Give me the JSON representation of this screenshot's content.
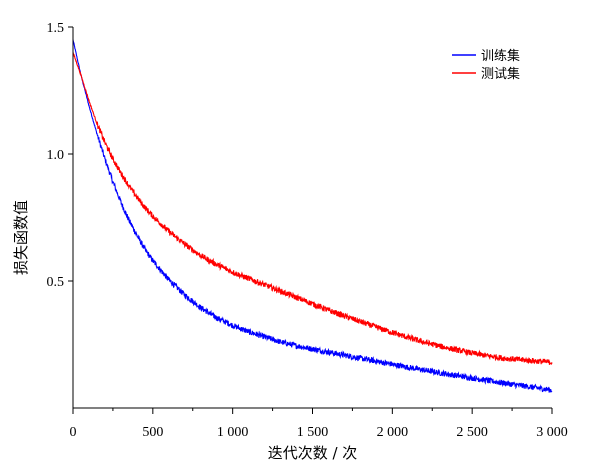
{
  "chart_data": {
    "type": "line",
    "title": "",
    "xlabel": "迭代次数 / 次",
    "ylabel": "损失函数值",
    "xlim": [
      0,
      3000
    ],
    "ylim": [
      0,
      1.5
    ],
    "x_ticks": [
      {
        "value": 0,
        "label": "0"
      },
      {
        "value": 500,
        "label": "500"
      },
      {
        "value": 1000,
        "label": "1 000"
      },
      {
        "value": 1500,
        "label": "1 500"
      },
      {
        "value": 2000,
        "label": "2 000"
      },
      {
        "value": 2500,
        "label": "2 500"
      },
      {
        "value": 3000,
        "label": "3 000"
      }
    ],
    "y_ticks": [
      {
        "value": 0.5,
        "label": "0.5"
      },
      {
        "value": 1.0,
        "label": "1.0"
      },
      {
        "value": 1.5,
        "label": "1.5"
      }
    ],
    "legend_position": "top-right",
    "grid": false,
    "series": [
      {
        "name": "训练集",
        "color": "#0000ff",
        "x": [
          0,
          50,
          100,
          150,
          200,
          250,
          300,
          350,
          400,
          450,
          500,
          600,
          700,
          800,
          900,
          1000,
          1100,
          1200,
          1300,
          1400,
          1500,
          1600,
          1700,
          1800,
          1900,
          2000,
          2100,
          2200,
          2300,
          2400,
          2500,
          2600,
          2700,
          2800,
          2900,
          3000
        ],
        "y": [
          1.45,
          1.31,
          1.19,
          1.08,
          0.98,
          0.89,
          0.81,
          0.74,
          0.68,
          0.625,
          0.58,
          0.505,
          0.445,
          0.395,
          0.355,
          0.325,
          0.3,
          0.28,
          0.26,
          0.245,
          0.232,
          0.22,
          0.208,
          0.196,
          0.184,
          0.172,
          0.16,
          0.149,
          0.138,
          0.128,
          0.118,
          0.108,
          0.098,
          0.089,
          0.08,
          0.07
        ]
      },
      {
        "name": "测试集",
        "color": "#ff0000",
        "x": [
          0,
          50,
          100,
          150,
          200,
          250,
          300,
          350,
          400,
          450,
          500,
          600,
          700,
          800,
          900,
          1000,
          1100,
          1200,
          1300,
          1400,
          1500,
          1600,
          1700,
          1800,
          1900,
          2000,
          2100,
          2200,
          2300,
          2400,
          2500,
          2600,
          2700,
          2800,
          2900,
          3000
        ],
        "y": [
          1.4,
          1.31,
          1.21,
          1.12,
          1.045,
          0.98,
          0.925,
          0.875,
          0.83,
          0.79,
          0.755,
          0.695,
          0.645,
          0.6,
          0.565,
          0.535,
          0.51,
          0.485,
          0.46,
          0.435,
          0.41,
          0.385,
          0.362,
          0.34,
          0.318,
          0.297,
          0.277,
          0.259,
          0.243,
          0.229,
          0.216,
          0.205,
          0.196,
          0.19,
          0.185,
          0.18
        ]
      }
    ]
  }
}
